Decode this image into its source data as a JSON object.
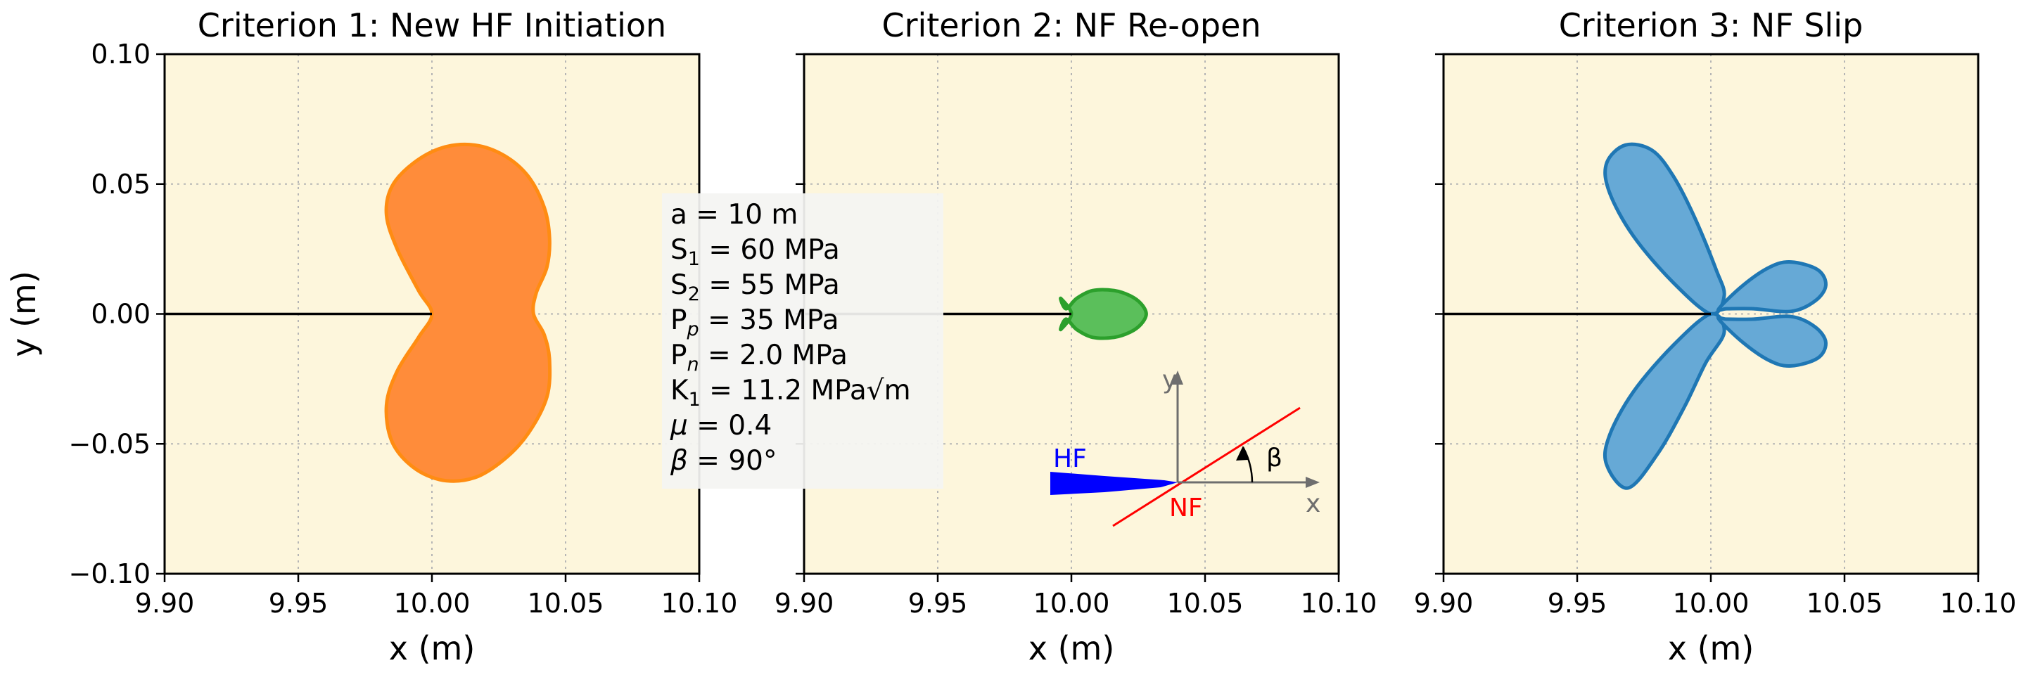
{
  "chart_data": [
    {
      "type": "area",
      "title": "Criterion 1: New HF Initiation",
      "xlabel": "x (m)",
      "ylabel": "y (m)",
      "xlim": [
        9.9,
        10.1
      ],
      "ylim": [
        -0.1,
        0.1
      ],
      "xticks": [
        "9.90",
        "9.95",
        "10.00",
        "10.05",
        "10.10"
      ],
      "yticks": [
        "0.10",
        "0.05",
        "0.00",
        "−0.05",
        "−0.10"
      ],
      "grid": true,
      "background": "#fdf6dc",
      "fill_color": "#ff8c3a",
      "edge_color": "#ff8c12",
      "crack_line": {
        "x": [
          9.9,
          10.0
        ],
        "y": [
          0.0,
          0.0
        ]
      },
      "shape": {
        "x": [
          10.0,
          9.995,
          9.987,
          9.983,
          9.985,
          9.993,
          10.004,
          10.016,
          10.027,
          10.036,
          10.042,
          10.044,
          10.043,
          10.039,
          10.038,
          10.042,
          10.044,
          10.043,
          10.036,
          10.027,
          10.016,
          10.004,
          9.993,
          9.985,
          9.983,
          9.987,
          9.995,
          10.0
        ],
        "y": [
          0.0,
          0.009,
          0.025,
          0.038,
          0.049,
          0.058,
          0.064,
          0.065,
          0.061,
          0.053,
          0.041,
          0.029,
          0.018,
          0.008,
          0.0,
          -0.008,
          -0.018,
          -0.032,
          -0.046,
          -0.056,
          -0.063,
          -0.064,
          -0.059,
          -0.049,
          -0.035,
          -0.022,
          -0.009,
          0.0
        ]
      }
    },
    {
      "type": "area",
      "title": "Criterion 2: NF Re-open",
      "xlabel": "x (m)",
      "xlim": [
        9.9,
        10.1
      ],
      "ylim": [
        -0.1,
        0.1
      ],
      "xticks": [
        "9.90",
        "9.95",
        "10.00",
        "10.05",
        "10.10"
      ],
      "grid": true,
      "background": "#fdf6dc",
      "fill_color": "#5bbf5b",
      "edge_color": "#2ca02c",
      "crack_line": {
        "x": [
          9.9,
          10.0
        ],
        "y": [
          0.0,
          0.0
        ]
      },
      "shape": {
        "x": [
          9.996,
          9.998,
          10.002,
          10.008,
          10.016,
          10.022,
          10.026,
          10.028,
          10.026,
          10.022,
          10.016,
          10.008,
          10.002,
          9.998,
          9.996,
          10.0,
          9.996
        ],
        "y": [
          0.006,
          0.002,
          0.006,
          0.009,
          0.009,
          0.007,
          0.004,
          0.0,
          -0.004,
          -0.007,
          -0.009,
          -0.009,
          -0.006,
          -0.002,
          -0.006,
          0.0,
          0.006
        ]
      },
      "inset": {
        "hf_label": "HF",
        "nf_label": "NF",
        "x_axis_label": "x",
        "y_axis_label": "y",
        "angle_label": "β",
        "hf_color": "#0000ff",
        "nf_color": "#ff0000",
        "axis_color": "#6e6e6e"
      }
    },
    {
      "type": "area",
      "title": "Criterion 3: NF Slip",
      "xlabel": "x (m)",
      "xlim": [
        9.9,
        10.1
      ],
      "ylim": [
        -0.1,
        0.1
      ],
      "xticks": [
        "9.90",
        "9.95",
        "10.00",
        "10.05",
        "10.10"
      ],
      "grid": true,
      "background": "#fdf6dc",
      "fill_color": "#66a9d6",
      "edge_color": "#1f77b4",
      "crack_line": {
        "x": [
          9.9,
          10.0
        ],
        "y": [
          0.0,
          0.0
        ]
      },
      "lobes": [
        {
          "x": [
            10.0,
            9.986,
            9.971,
            9.962,
            9.961,
            9.968,
            9.978,
            9.986,
            9.994,
            10.002,
            10.005,
            10.0
          ],
          "y": [
            0.0,
            0.012,
            0.03,
            0.047,
            0.058,
            0.065,
            0.063,
            0.053,
            0.037,
            0.017,
            0.007,
            0.0
          ]
        },
        {
          "x": [
            10.0,
            10.005,
            9.998,
            9.99,
            9.98,
            9.969,
            9.961,
            9.962,
            9.971,
            9.986,
            10.0
          ],
          "y": [
            0.0,
            -0.007,
            -0.019,
            -0.036,
            -0.054,
            -0.067,
            -0.058,
            -0.047,
            -0.03,
            -0.012,
            0.0
          ]
        },
        {
          "x": [
            10.003,
            10.012,
            10.022,
            10.03,
            10.04,
            10.043,
            10.039,
            10.03,
            10.016,
            10.006,
            10.003
          ],
          "y": [
            0.002,
            0.011,
            0.018,
            0.02,
            0.017,
            0.011,
            0.005,
            0.001,
            0.002,
            0.002,
            0.002
          ]
        },
        {
          "x": [
            10.003,
            10.006,
            10.016,
            10.03,
            10.039,
            10.043,
            10.04,
            10.03,
            10.022,
            10.012,
            10.003
          ],
          "y": [
            -0.002,
            -0.002,
            -0.002,
            -0.001,
            -0.005,
            -0.011,
            -0.017,
            -0.02,
            -0.018,
            -0.011,
            -0.002
          ]
        }
      ]
    }
  ],
  "legend_box": {
    "placement": "between panel 1 and panel 2",
    "lines": [
      {
        "symbol": "a",
        "value": "= 10 m"
      },
      {
        "symbol": "S",
        "sub": "1",
        "value": "= 60 MPa"
      },
      {
        "symbol": "S",
        "sub": "2",
        "value": "= 55 MPa"
      },
      {
        "symbol": "P",
        "sub": "p",
        "value": "= 35 MPa"
      },
      {
        "symbol": "P",
        "sub": "n",
        "value": "= 2.0 MPa"
      },
      {
        "symbol": "K",
        "sub": "1",
        "value": "= 11.2 MPa√m"
      },
      {
        "symbol": "μ",
        "value": "=  0.4"
      },
      {
        "symbol": "β",
        "value": "= 90°"
      }
    ]
  }
}
